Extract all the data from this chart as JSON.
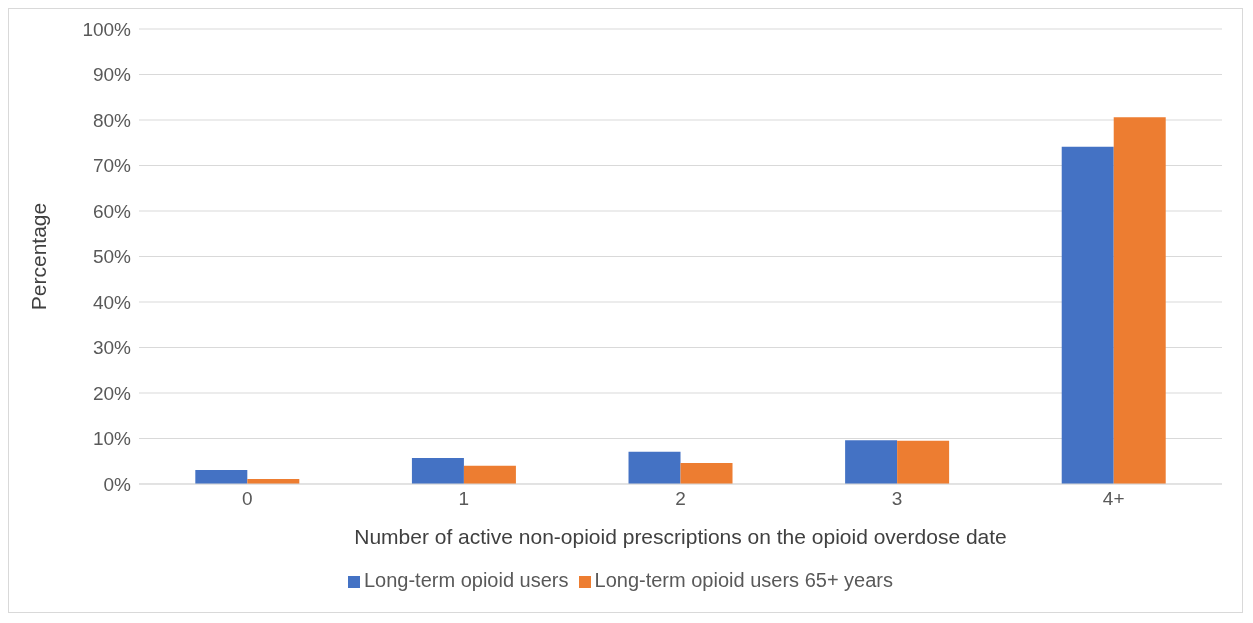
{
  "chart_data": {
    "type": "bar",
    "xlabel": "Number of active non-opioid prescriptions on the opioid overdose date",
    "ylabel": "Percentage",
    "categories": [
      "0",
      "1",
      "2",
      "3",
      "4+"
    ],
    "series": [
      {
        "name": "Long-term opioid users",
        "color": "#4472c4",
        "values": [
          3.1,
          5.7,
          7.1,
          9.6,
          74.1
        ]
      },
      {
        "name": "Long-term opioid users 65+ years",
        "color": "#ed7d31",
        "values": [
          1.1,
          4.0,
          4.6,
          9.5,
          80.6
        ]
      }
    ],
    "ylim": [
      0,
      100
    ],
    "yticks": [
      {
        "value": 0,
        "label": "0%"
      },
      {
        "value": 10,
        "label": "10%"
      },
      {
        "value": 20,
        "label": "20%"
      },
      {
        "value": 30,
        "label": "30%"
      },
      {
        "value": 40,
        "label": "40%"
      },
      {
        "value": 50,
        "label": "50%"
      },
      {
        "value": 60,
        "label": "60%"
      },
      {
        "value": 70,
        "label": "70%"
      },
      {
        "value": 80,
        "label": "80%"
      },
      {
        "value": 90,
        "label": "90%"
      },
      {
        "value": 100,
        "label": "100%"
      }
    ],
    "grid": "y",
    "legend": "bottom"
  }
}
